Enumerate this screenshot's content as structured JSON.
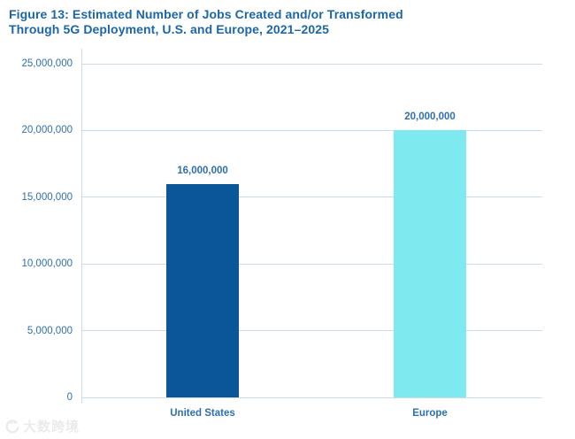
{
  "title": {
    "line1": "Figure 13: Estimated Number of Jobs Created and/or Transformed",
    "line2": "Through 5G Deployment, U.S. and Europe, 2021–2025"
  },
  "watermark": {
    "text": "大数跨境",
    "icon": "crescent-dots-logo"
  },
  "colors": {
    "title_text": "#1b66ab",
    "axis_label_text": "#2e6fb3",
    "gridline": "#ccdbe6",
    "bar_united_states": "#0a5699",
    "bar_europe": "#7ee9ef",
    "watermark": "#ebebeb",
    "background": "#ffffff"
  },
  "chart_data": {
    "type": "bar",
    "title": "Figure 13: Estimated Number of Jobs Created and/or Transformed Through 5G Deployment, U.S. and Europe, 2021–2025",
    "categories": [
      "United States",
      "Europe"
    ],
    "values": [
      16000000,
      20000000
    ],
    "value_labels": [
      "16,000,000",
      "20,000,000"
    ],
    "bar_colors": [
      "#0a5699",
      "#7ee9ef"
    ],
    "xlabel": "",
    "ylabel": "",
    "ylim": [
      0,
      25000000
    ],
    "ytick_interval": 5000000,
    "ytick_labels": [
      "0",
      "5,000,000",
      "10,000,000",
      "15,000,000",
      "20,000,000",
      "25,000,000"
    ],
    "grid": true,
    "legend_position": "none"
  }
}
